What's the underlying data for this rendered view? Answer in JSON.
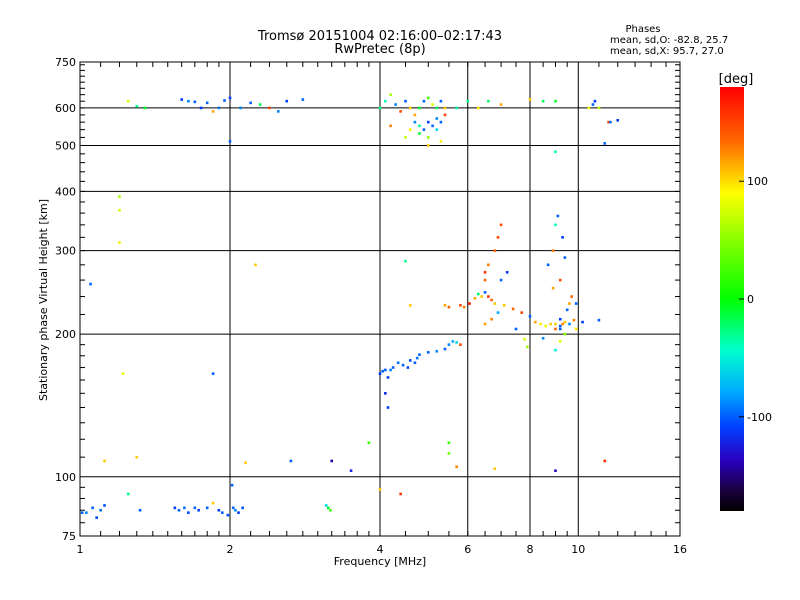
{
  "chart_data": {
    "type": "scatter",
    "title": "Tromsø 20151004 02:16:00–02:17:43",
    "subtitle": "RwPretec (8p)",
    "xlabel": "Frequency [MHz]",
    "ylabel": "Stationary phase Virtual Height [km]",
    "x_scale": "log",
    "y_scale": "log",
    "xlim": [
      1,
      16
    ],
    "ylim": [
      75,
      750
    ],
    "x_ticks": [
      1,
      2,
      4,
      6,
      8,
      10,
      16
    ],
    "y_ticks": [
      75,
      100,
      200,
      300,
      400,
      500,
      600,
      750
    ],
    "x_grid": [
      2,
      4,
      6,
      8,
      10
    ],
    "y_grid": [
      100,
      200,
      300,
      400,
      500,
      600
    ],
    "stats": {
      "header": "Phases",
      "line_o": "mean, sd,O:  -82.8, 25.7",
      "line_x": "mean, sd,X:   95.7, 27.0"
    },
    "colorbar": {
      "label": "[deg]",
      "ticks": [
        100,
        0,
        -100
      ],
      "range": [
        -180,
        180
      ]
    },
    "points": [
      [
        1.01,
        84,
        -100
      ],
      [
        1.03,
        84,
        -90
      ],
      [
        1.06,
        86,
        -100
      ],
      [
        1.08,
        82,
        -110
      ],
      [
        1.1,
        85,
        -95
      ],
      [
        1.12,
        87,
        -105
      ],
      [
        1.25,
        92,
        -30
      ],
      [
        1.32,
        85,
        -100
      ],
      [
        1.55,
        86,
        -110
      ],
      [
        1.58,
        85,
        -100
      ],
      [
        1.62,
        86,
        -95
      ],
      [
        1.65,
        84,
        -105
      ],
      [
        1.7,
        86,
        -100
      ],
      [
        1.73,
        85,
        -110
      ],
      [
        1.8,
        86,
        -100
      ],
      [
        1.85,
        88,
        110
      ],
      [
        1.9,
        85,
        -110
      ],
      [
        1.93,
        84,
        -100
      ],
      [
        1.98,
        83,
        -105
      ],
      [
        2.03,
        86,
        -100
      ],
      [
        2.05,
        85,
        -90
      ],
      [
        2.08,
        84,
        -110
      ],
      [
        2.12,
        86,
        -105
      ],
      [
        2.02,
        96,
        -100
      ],
      [
        3.12,
        87,
        -60
      ],
      [
        3.15,
        86,
        -10
      ],
      [
        3.18,
        85,
        20
      ],
      [
        4.0,
        94,
        110
      ],
      [
        4.4,
        92,
        160
      ],
      [
        3.2,
        108,
        -140
      ],
      [
        3.5,
        103,
        -120
      ],
      [
        2.15,
        107,
        110
      ],
      [
        2.65,
        108,
        -100
      ],
      [
        1.12,
        108,
        110
      ],
      [
        1.3,
        110,
        110
      ],
      [
        3.8,
        118,
        20
      ],
      [
        5.5,
        118,
        20
      ],
      [
        5.5,
        112,
        40
      ],
      [
        5.7,
        105,
        130
      ],
      [
        6.8,
        104,
        110
      ],
      [
        9.0,
        103,
        -130
      ],
      [
        11.3,
        108,
        160
      ],
      [
        4.0,
        165,
        -110
      ],
      [
        4.05,
        167,
        -100
      ],
      [
        4.1,
        168,
        -100
      ],
      [
        4.15,
        162,
        -110
      ],
      [
        4.2,
        168,
        -90
      ],
      [
        4.25,
        170,
        -100
      ],
      [
        4.35,
        174,
        -95
      ],
      [
        4.45,
        172,
        -100
      ],
      [
        4.55,
        170,
        -110
      ],
      [
        4.6,
        176,
        -105
      ],
      [
        4.7,
        174,
        -100
      ],
      [
        4.75,
        178,
        -95
      ],
      [
        4.8,
        181,
        -100
      ],
      [
        5.0,
        183,
        -100
      ],
      [
        5.2,
        184,
        -90
      ],
      [
        5.4,
        186,
        -100
      ],
      [
        5.5,
        190,
        -90
      ],
      [
        5.6,
        193,
        -80
      ],
      [
        5.7,
        192,
        -60
      ],
      [
        5.8,
        190,
        150
      ],
      [
        4.1,
        150,
        -120
      ],
      [
        4.15,
        140,
        -110
      ],
      [
        5.4,
        230,
        120
      ],
      [
        5.5,
        228,
        140
      ],
      [
        5.8,
        230,
        150
      ],
      [
        5.9,
        228,
        130
      ],
      [
        6.05,
        232,
        170
      ],
      [
        6.2,
        238,
        120
      ],
      [
        6.3,
        243,
        -20
      ],
      [
        6.4,
        240,
        110
      ],
      [
        6.5,
        245,
        -100
      ],
      [
        6.6,
        240,
        160
      ],
      [
        6.7,
        236,
        140
      ],
      [
        6.8,
        232,
        110
      ],
      [
        6.5,
        210,
        120
      ],
      [
        6.7,
        215,
        130
      ],
      [
        6.9,
        222,
        -80
      ],
      [
        7.1,
        230,
        110
      ],
      [
        7.4,
        226,
        140
      ],
      [
        7.7,
        222,
        150
      ],
      [
        8.0,
        218,
        -100
      ],
      [
        8.2,
        212,
        120
      ],
      [
        8.4,
        210,
        100
      ],
      [
        8.6,
        208,
        90
      ],
      [
        8.8,
        210,
        110
      ],
      [
        9.0,
        205,
        140
      ],
      [
        9.2,
        208,
        -100
      ],
      [
        9.4,
        212,
        110
      ],
      [
        9.6,
        210,
        -90
      ],
      [
        9.8,
        214,
        130
      ],
      [
        9.9,
        205,
        100
      ],
      [
        7.5,
        205,
        -100
      ],
      [
        7.8,
        195,
        80
      ],
      [
        7.9,
        188,
        60
      ],
      [
        8.5,
        196,
        -90
      ],
      [
        9.0,
        185,
        -50
      ],
      [
        9.2,
        193,
        80
      ],
      [
        9.4,
        200,
        50
      ],
      [
        9.0,
        210,
        110
      ],
      [
        9.2,
        205,
        -100
      ],
      [
        9.2,
        215,
        -110
      ],
      [
        9.3,
        210,
        130
      ],
      [
        9.5,
        225,
        -100
      ],
      [
        9.6,
        232,
        120
      ],
      [
        9.7,
        240,
        140
      ],
      [
        9.9,
        232,
        -100
      ],
      [
        10.2,
        212,
        -110
      ],
      [
        11.0,
        214,
        -100
      ],
      [
        6.5,
        270,
        160
      ],
      [
        6.6,
        280,
        130
      ],
      [
        6.8,
        300,
        140
      ],
      [
        6.9,
        320,
        150
      ],
      [
        7.0,
        340,
        150
      ],
      [
        6.5,
        260,
        140
      ],
      [
        7.0,
        260,
        -100
      ],
      [
        7.2,
        270,
        -110
      ],
      [
        8.7,
        280,
        -100
      ],
      [
        8.9,
        300,
        130
      ],
      [
        9.0,
        340,
        -40
      ],
      [
        9.1,
        355,
        -100
      ],
      [
        9.3,
        320,
        -110
      ],
      [
        9.4,
        290,
        -100
      ],
      [
        9.2,
        260,
        150
      ],
      [
        8.9,
        250,
        120
      ],
      [
        4.5,
        285,
        -30
      ],
      [
        4.6,
        230,
        110
      ],
      [
        2.25,
        280,
        110
      ],
      [
        1.05,
        255,
        -100
      ],
      [
        1.2,
        390,
        60
      ],
      [
        1.2,
        365,
        80
      ],
      [
        1.2,
        312,
        100
      ],
      [
        1.22,
        165,
        90
      ],
      [
        1.85,
        165,
        -100
      ],
      [
        1.25,
        620,
        80
      ],
      [
        1.3,
        605,
        -30
      ],
      [
        1.35,
        600,
        -10
      ],
      [
        1.6,
        625,
        -110
      ],
      [
        1.65,
        620,
        -90
      ],
      [
        1.7,
        618,
        -100
      ],
      [
        1.75,
        600,
        -110
      ],
      [
        1.8,
        615,
        -100
      ],
      [
        1.85,
        590,
        120
      ],
      [
        1.9,
        600,
        -95
      ],
      [
        1.95,
        622,
        -100
      ],
      [
        2.0,
        630,
        -110
      ],
      [
        2.1,
        600,
        -90
      ],
      [
        2.2,
        615,
        -100
      ],
      [
        2.3,
        610,
        -20
      ],
      [
        2.4,
        600,
        150
      ],
      [
        2.5,
        590,
        -90
      ],
      [
        2.6,
        620,
        -110
      ],
      [
        2.8,
        625,
        -100
      ],
      [
        2.0,
        510,
        -100
      ],
      [
        4.0,
        600,
        -30
      ],
      [
        4.1,
        620,
        -40
      ],
      [
        4.2,
        640,
        60
      ],
      [
        4.3,
        610,
        -90
      ],
      [
        4.4,
        590,
        150
      ],
      [
        4.5,
        620,
        -100
      ],
      [
        4.6,
        600,
        110
      ],
      [
        4.7,
        580,
        120
      ],
      [
        4.8,
        600,
        -10
      ],
      [
        4.9,
        620,
        -100
      ],
      [
        5.0,
        630,
        20
      ],
      [
        5.1,
        610,
        80
      ],
      [
        5.2,
        600,
        -20
      ],
      [
        5.3,
        620,
        -100
      ],
      [
        5.4,
        600,
        110
      ],
      [
        4.7,
        560,
        -90
      ],
      [
        4.8,
        550,
        -30
      ],
      [
        4.9,
        540,
        -100
      ],
      [
        5.0,
        560,
        -110
      ],
      [
        5.1,
        550,
        -100
      ],
      [
        5.2,
        570,
        -90
      ],
      [
        5.3,
        560,
        -100
      ],
      [
        5.4,
        580,
        150
      ],
      [
        4.6,
        540,
        100
      ],
      [
        4.8,
        530,
        -10
      ],
      [
        5.0,
        520,
        50
      ],
      [
        5.2,
        540,
        -60
      ],
      [
        5.3,
        510,
        100
      ],
      [
        4.5,
        520,
        70
      ],
      [
        5.0,
        500,
        110
      ],
      [
        4.2,
        550,
        130
      ],
      [
        5.7,
        600,
        -40
      ],
      [
        6.0,
        620,
        -30
      ],
      [
        6.3,
        600,
        100
      ],
      [
        6.6,
        620,
        -20
      ],
      [
        7.0,
        610,
        120
      ],
      [
        8.0,
        625,
        110
      ],
      [
        8.5,
        620,
        -20
      ],
      [
        9.0,
        620,
        -10
      ],
      [
        10.5,
        600,
        90
      ],
      [
        10.7,
        610,
        -100
      ],
      [
        10.8,
        620,
        -110
      ],
      [
        11.0,
        600,
        70
      ],
      [
        11.5,
        560,
        150
      ],
      [
        12.0,
        565,
        -110
      ],
      [
        11.6,
        560,
        -100
      ],
      [
        11.3,
        505,
        -100
      ],
      [
        9.0,
        485,
        -40
      ]
    ]
  }
}
